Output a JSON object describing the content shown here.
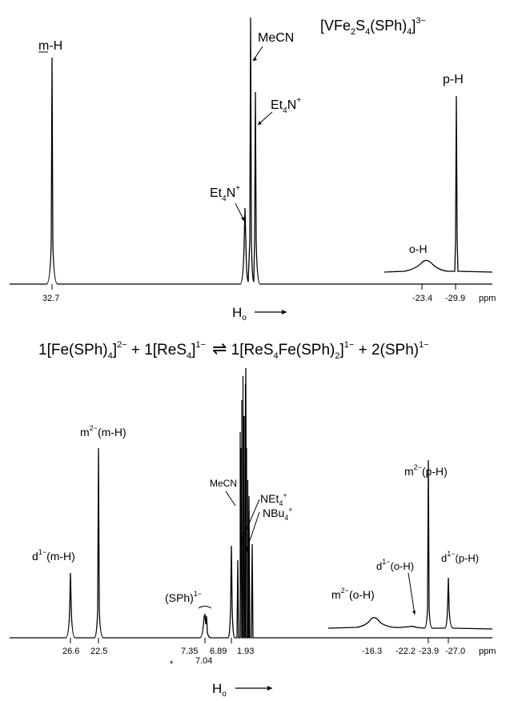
{
  "top_panel": {
    "compound_base": "[VFe",
    "compound_sub1": "2",
    "compound_mid": "S",
    "compound_sub2": "4",
    "compound_mid2": "(SPh)",
    "compound_sub3": "4",
    "compound_close": "]",
    "compound_charge": "3−",
    "labels": {
      "mecn": "MeCN",
      "et4n_right": "Et",
      "et4n_left": "Et",
      "sub4": "4",
      "n_plus": "N",
      "plus": "+",
      "m_h": "m-H",
      "p_h": "p-H",
      "o_h": "o-H"
    },
    "axis_ticks": [
      "32.7",
      "-23.4",
      "-29.9"
    ],
    "unit": "ppm",
    "field_label": "H",
    "field_sub": "o"
  },
  "equation": {
    "t1": "1[Fe(SPh)",
    "s1": "4",
    "t1b": "]",
    "c1": "2−",
    "t2": " + 1[ReS",
    "s2": "4",
    "t2b": "]",
    "c2": "1−",
    "arrow": "⇌",
    "t3": " 1[ReS",
    "s3": "4",
    "t3b": "Fe(SPh)",
    "s4": "2",
    "t3c": "]",
    "c3": "1−",
    "t4": " + 2(SPh)",
    "c4": "1−"
  },
  "bottom_panel": {
    "labels": {
      "mecn": "MeCN",
      "net4": "NEt",
      "nbu4": "NBu",
      "sub4": "4",
      "plus": "+",
      "m2_mh": "m",
      "m2_mh_sup": "2−",
      "m2_mh_tail": "(m-H)",
      "d1_mh": "d",
      "d1_mh_sup": "1−",
      "d1_mh_tail": "(m-H)",
      "sph": "(SPh)",
      "sph_sup": "1−",
      "m2_ph": "m",
      "m2_ph_sup": "2−",
      "m2_ph_tail": "(p-H)",
      "d1_oh": "d",
      "d1_oh_sup": "1−",
      "d1_oh_tail": "(o-H)",
      "d1_ph": "d",
      "d1_ph_sup": "1−",
      "d1_ph_tail": "(p-H)",
      "m2_oh": "m",
      "m2_oh_sup": "2−",
      "m2_oh_tail": "(o-H)",
      "star": "*"
    },
    "axis_ticks": [
      "26.6",
      "22.5",
      "7.35",
      "6.89",
      "7.04",
      "1.93",
      "-16.3",
      "-22.2",
      "-23.9",
      "-27.0"
    ],
    "unit": "ppm",
    "field_label": "H",
    "field_sub": "o"
  }
}
